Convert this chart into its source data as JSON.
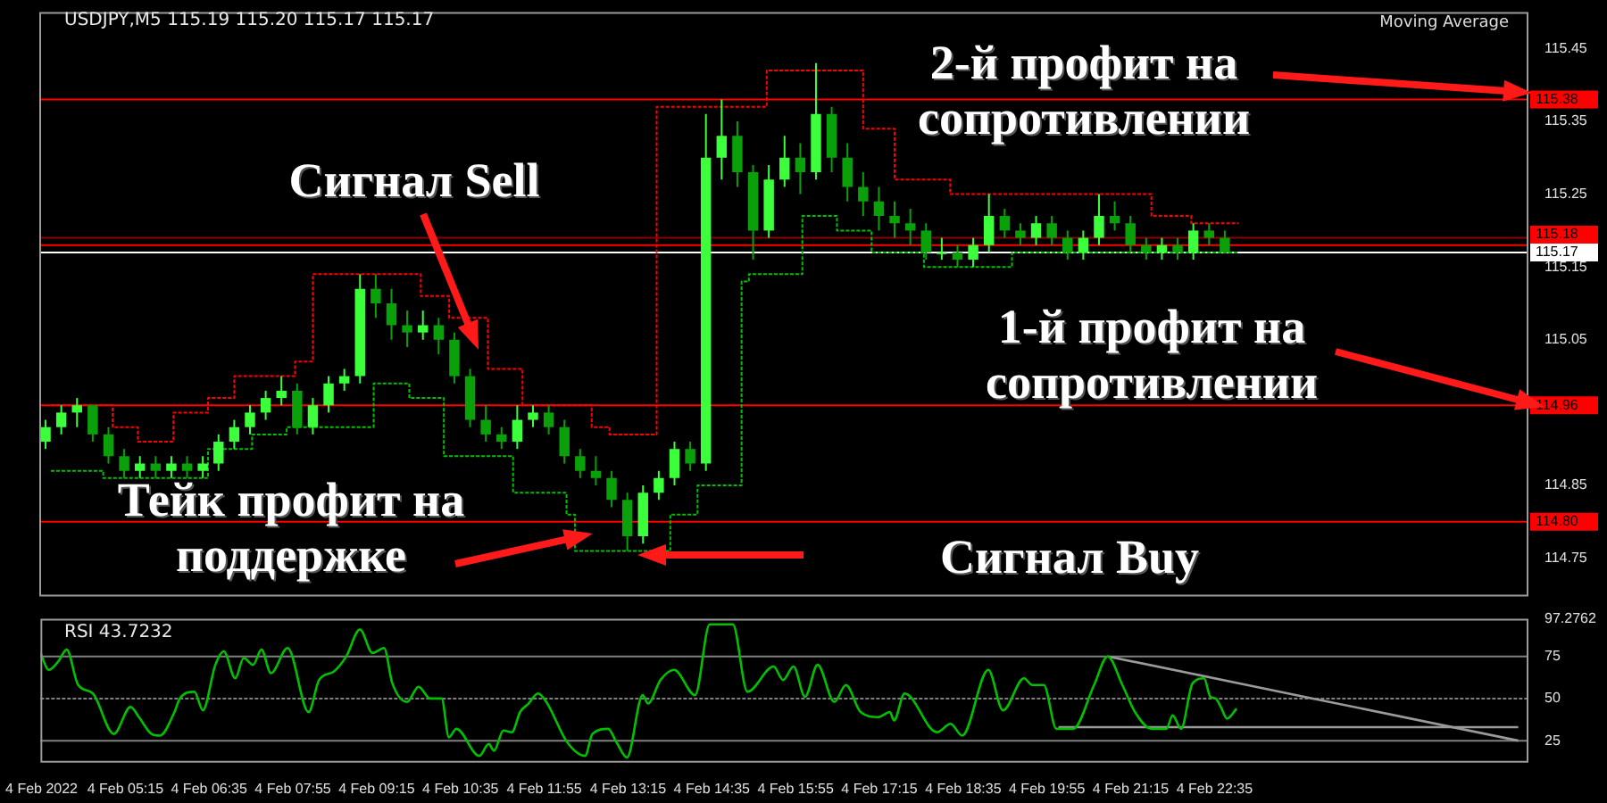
{
  "chart_data": [
    {
      "type": "candlestick",
      "title": "USDJPY,M5 115.19 115.20 115.17 115.17",
      "annotations": [
        "Moving Average",
        "Сигнал Sell",
        "Тейк профит на поддержке",
        "2-й профит на сопротивлении",
        "1-й профит на сопротивлении",
        "Сигнал Buy"
      ],
      "x": [
        "2022-02-04T04:00",
        "2022-02-04T04:15",
        "2022-02-04T04:30",
        "2022-02-04T04:45",
        "2022-02-04T05:00",
        "2022-02-04T05:15",
        "2022-02-04T05:30",
        "2022-02-04T05:45",
        "2022-02-04T06:00",
        "2022-02-04T06:15",
        "2022-02-04T06:30",
        "2022-02-04T06:45",
        "2022-02-04T07:00",
        "2022-02-04T07:15",
        "2022-02-04T07:30",
        "2022-02-04T07:45",
        "2022-02-04T08:00",
        "2022-02-04T08:15",
        "2022-02-04T08:30",
        "2022-02-04T08:45",
        "2022-02-04T09:00",
        "2022-02-04T09:15",
        "2022-02-04T09:30",
        "2022-02-04T09:45",
        "2022-02-04T10:00",
        "2022-02-04T10:15",
        "2022-02-04T10:30",
        "2022-02-04T10:45",
        "2022-02-04T11:00",
        "2022-02-04T11:15",
        "2022-02-04T11:30",
        "2022-02-04T11:45",
        "2022-02-04T12:00",
        "2022-02-04T12:15",
        "2022-02-04T12:30",
        "2022-02-04T12:45",
        "2022-02-04T13:00",
        "2022-02-04T13:15",
        "2022-02-04T13:30",
        "2022-02-04T13:45",
        "2022-02-04T14:00",
        "2022-02-04T14:15",
        "2022-02-04T14:30",
        "2022-02-04T14:45",
        "2022-02-04T15:00",
        "2022-02-04T15:15",
        "2022-02-04T15:30",
        "2022-02-04T15:45",
        "2022-02-04T16:00",
        "2022-02-04T16:15",
        "2022-02-04T16:30",
        "2022-02-04T16:45",
        "2022-02-04T17:00",
        "2022-02-04T17:15",
        "2022-02-04T17:30",
        "2022-02-04T17:45",
        "2022-02-04T18:00",
        "2022-02-04T18:15",
        "2022-02-04T18:30",
        "2022-02-04T18:45",
        "2022-02-04T19:00",
        "2022-02-04T19:15",
        "2022-02-04T19:30",
        "2022-02-04T19:45",
        "2022-02-04T20:00",
        "2022-02-04T20:15",
        "2022-02-04T20:30",
        "2022-02-04T20:45",
        "2022-02-04T21:00",
        "2022-02-04T21:15",
        "2022-02-04T21:30",
        "2022-02-04T21:45",
        "2022-02-04T22:00",
        "2022-02-04T22:15",
        "2022-02-04T22:30",
        "2022-02-04T22:45"
      ],
      "ohlc": [
        [
          114.91,
          114.94,
          114.9,
          114.93
        ],
        [
          114.93,
          114.96,
          114.92,
          114.95
        ],
        [
          114.95,
          114.97,
          114.93,
          114.96
        ],
        [
          114.96,
          114.96,
          114.91,
          114.92
        ],
        [
          114.92,
          114.93,
          114.88,
          114.89
        ],
        [
          114.89,
          114.9,
          114.86,
          114.87
        ],
        [
          114.87,
          114.89,
          114.86,
          114.88
        ],
        [
          114.88,
          114.89,
          114.86,
          114.87
        ],
        [
          114.87,
          114.89,
          114.86,
          114.88
        ],
        [
          114.88,
          114.89,
          114.86,
          114.87
        ],
        [
          114.87,
          114.89,
          114.86,
          114.88
        ],
        [
          114.88,
          114.92,
          114.87,
          114.91
        ],
        [
          114.91,
          114.94,
          114.9,
          114.93
        ],
        [
          114.93,
          114.96,
          114.92,
          114.95
        ],
        [
          114.95,
          114.98,
          114.94,
          114.97
        ],
        [
          114.97,
          115,
          114.96,
          114.98
        ],
        [
          114.98,
          114.99,
          114.92,
          114.93
        ],
        [
          114.93,
          114.97,
          114.92,
          114.96
        ],
        [
          114.96,
          115,
          114.95,
          114.99
        ],
        [
          114.99,
          115.01,
          114.98,
          115
        ],
        [
          115,
          115.14,
          114.99,
          115.12
        ],
        [
          115.12,
          115.14,
          115.08,
          115.1
        ],
        [
          115.1,
          115.12,
          115.05,
          115.07
        ],
        [
          115.07,
          115.09,
          115.04,
          115.06
        ],
        [
          115.06,
          115.09,
          115.05,
          115.07
        ],
        [
          115.07,
          115.08,
          115.03,
          115.05
        ],
        [
          115.05,
          115.06,
          114.99,
          115
        ],
        [
          115,
          115.01,
          114.93,
          114.94
        ],
        [
          114.94,
          114.96,
          114.91,
          114.92
        ],
        [
          114.92,
          114.93,
          114.9,
          114.91
        ],
        [
          114.91,
          114.96,
          114.9,
          114.94
        ],
        [
          114.94,
          114.96,
          114.93,
          114.95
        ],
        [
          114.95,
          114.96,
          114.92,
          114.93
        ],
        [
          114.93,
          114.94,
          114.88,
          114.89
        ],
        [
          114.89,
          114.9,
          114.86,
          114.87
        ],
        [
          114.87,
          114.89,
          114.85,
          114.86
        ],
        [
          114.86,
          114.87,
          114.82,
          114.83
        ],
        [
          114.83,
          114.84,
          114.76,
          114.78
        ],
        [
          114.78,
          114.85,
          114.77,
          114.84
        ],
        [
          114.84,
          114.87,
          114.83,
          114.86
        ],
        [
          114.86,
          114.91,
          114.85,
          114.9
        ],
        [
          114.9,
          114.91,
          114.87,
          114.88
        ],
        [
          114.88,
          115.36,
          114.87,
          115.3
        ],
        [
          115.3,
          115.38,
          115.27,
          115.33
        ],
        [
          115.33,
          115.35,
          115.26,
          115.28
        ],
        [
          115.28,
          115.29,
          115.16,
          115.2
        ],
        [
          115.2,
          115.29,
          115.19,
          115.27
        ],
        [
          115.27,
          115.33,
          115.26,
          115.3
        ],
        [
          115.3,
          115.32,
          115.25,
          115.28
        ],
        [
          115.28,
          115.43,
          115.27,
          115.36
        ],
        [
          115.36,
          115.37,
          115.28,
          115.3
        ],
        [
          115.3,
          115.32,
          115.24,
          115.26
        ],
        [
          115.26,
          115.28,
          115.22,
          115.24
        ],
        [
          115.24,
          115.26,
          115.2,
          115.22
        ],
        [
          115.22,
          115.24,
          115.19,
          115.21
        ],
        [
          115.21,
          115.23,
          115.18,
          115.2
        ],
        [
          115.2,
          115.21,
          115.16,
          115.17
        ],
        [
          115.17,
          115.19,
          115.16,
          115.17
        ],
        [
          115.17,
          115.18,
          115.15,
          115.16
        ],
        [
          115.16,
          115.19,
          115.15,
          115.18
        ],
        [
          115.18,
          115.25,
          115.17,
          115.22
        ],
        [
          115.22,
          115.23,
          115.19,
          115.2
        ],
        [
          115.2,
          115.21,
          115.18,
          115.19
        ],
        [
          115.19,
          115.22,
          115.18,
          115.21
        ],
        [
          115.21,
          115.22,
          115.18,
          115.19
        ],
        [
          115.19,
          115.2,
          115.16,
          115.17
        ],
        [
          115.17,
          115.2,
          115.16,
          115.19
        ],
        [
          115.19,
          115.25,
          115.18,
          115.22
        ],
        [
          115.22,
          115.24,
          115.2,
          115.21
        ],
        [
          115.21,
          115.22,
          115.17,
          115.18
        ],
        [
          115.18,
          115.19,
          115.16,
          115.17
        ],
        [
          115.17,
          115.19,
          115.16,
          115.18
        ],
        [
          115.18,
          115.19,
          115.16,
          115.17
        ],
        [
          115.17,
          115.21,
          115.16,
          115.2
        ],
        [
          115.2,
          115.21,
          115.18,
          115.19
        ],
        [
          115.19,
          115.2,
          115.17,
          115.17
        ]
      ],
      "series": [
        {
          "type": "step",
          "color": "#ff0000",
          "line_style": "dotted",
          "x": [
            "2022-02-04T04:05",
            "2022-02-04T05:04",
            "2022-02-04T05:28",
            "2022-02-04T06:02",
            "2022-02-04T06:35",
            "2022-02-04T07:00",
            "2022-02-04T07:58",
            "2022-02-04T08:15",
            "2022-02-04T09:58",
            "2022-02-04T10:25",
            "2022-02-04T11:02",
            "2022-02-04T11:35",
            "2022-02-04T12:41",
            "2022-02-04T12:58",
            "2022-02-04T13:43",
            "2022-02-04T15:28",
            "2022-02-04T17:00",
            "2022-02-04T17:30",
            "2022-02-04T18:23",
            "2022-02-04T21:35",
            "2022-02-04T22:13",
            "2022-02-04T22:58"
          ],
          "values": [
            114.96,
            114.93,
            114.91,
            114.95,
            114.97,
            115,
            115.02,
            115.14,
            115.11,
            115.08,
            115.01,
            114.96,
            114.93,
            114.92,
            115.37,
            115.42,
            115.34,
            115.27,
            115.25,
            115.22,
            115.21,
            115.21
          ]
        },
        {
          "type": "step",
          "color": "#00c000",
          "line_style": "dotted",
          "x": [
            "2022-02-04T04:05",
            "2022-02-04T04:55",
            "2022-02-04T06:35",
            "2022-02-04T07:17",
            "2022-02-04T07:50",
            "2022-02-04T09:13",
            "2022-02-04T09:47",
            "2022-02-04T10:20",
            "2022-02-04T11:26",
            "2022-02-04T12:17",
            "2022-02-04T12:25",
            "2022-02-04T13:56",
            "2022-02-04T14:22",
            "2022-02-04T15:04",
            "2022-02-04T15:11",
            "2022-02-04T16:02",
            "2022-02-04T16:35",
            "2022-02-04T17:08",
            "2022-02-04T17:58",
            "2022-02-04T19:22",
            "2022-02-04T22:58"
          ],
          "values": [
            114.87,
            114.86,
            114.9,
            114.92,
            114.93,
            114.99,
            114.97,
            114.89,
            114.84,
            114.81,
            114.76,
            114.81,
            114.85,
            115.13,
            115.14,
            115.22,
            115.2,
            115.17,
            115.15,
            115.17,
            115.17
          ]
        }
      ],
      "xlim": [
        "2022-02-04T03:54",
        "2022-02-05T03:33"
      ],
      "ylim": [
        114.7,
        115.5
      ],
      "yticks": [
        114.75,
        114.85,
        115.05,
        115.15,
        115.25,
        115.35,
        115.45
      ],
      "ref_lines": [
        {
          "axis": "y",
          "value": 115.38,
          "label": "115.38",
          "color": "#ff0000"
        },
        {
          "axis": "y",
          "value": 115.19,
          "label": null,
          "color": "#8b0000"
        },
        {
          "axis": "y",
          "value": 115.18,
          "label": "115.18",
          "color": "#ff0000"
        },
        {
          "axis": "y",
          "value": 115.17,
          "label": "115.17",
          "color": "#ffffff"
        },
        {
          "axis": "y",
          "value": 114.96,
          "label": "114.96",
          "color": "#ff0000"
        },
        {
          "axis": "y",
          "value": 114.8,
          "label": "114.80",
          "color": "#ff0000"
        }
      ],
      "tick_labels": "y",
      "grid": false,
      "legend": false,
      "marker": "none"
    },
    {
      "type": "line",
      "title": "RSI 43.7232",
      "series": [
        {
          "color": "#00c000",
          "x": [
            "2022-02-04T03:54",
            "2022-02-04T04:02",
            "2022-02-04T04:11",
            "2022-02-04T04:19",
            "2022-02-04T04:30",
            "2022-02-04T04:44",
            "2022-02-04T05:04",
            "2022-02-04T05:20",
            "2022-02-04T05:28",
            "2022-02-04T05:40",
            "2022-02-04T05:48",
            "2022-02-04T06:02",
            "2022-02-04T06:07",
            "2022-02-04T06:21",
            "2022-02-04T06:29",
            "2022-02-04T06:41",
            "2022-02-04T06:49",
            "2022-02-04T07:00",
            "2022-02-04T07:08",
            "2022-02-04T07:17",
            "2022-02-04T07:25",
            "2022-02-04T07:34",
            "2022-02-04T07:50",
            "2022-02-04T08:10",
            "2022-02-04T08:20",
            "2022-02-04T08:34",
            "2022-02-04T08:46",
            "2022-02-04T08:59",
            "2022-02-04T09:11",
            "2022-02-04T09:22",
            "2022-02-04T09:30",
            "2022-02-04T09:44",
            "2022-02-04T09:55",
            "2022-02-04T10:06",
            "2022-02-04T10:17",
            "2022-02-04T10:24",
            "2022-02-04T10:31",
            "2022-02-04T10:53",
            "2022-02-04T11:02",
            "2022-02-04T11:07",
            "2022-02-04T11:16",
            "2022-02-04T11:24",
            "2022-02-04T11:32",
            "2022-02-04T11:40",
            "2022-02-04T11:49",
            "2022-02-04T11:57",
            "2022-02-04T12:17",
            "2022-02-04T12:34",
            "2022-02-04T12:41",
            "2022-02-04T12:56",
            "2022-02-04T13:04",
            "2022-02-04T13:14",
            "2022-02-04T13:29",
            "2022-02-04T13:34",
            "2022-02-04T13:46",
            "2022-02-04T13:59",
            "2022-02-04T14:19",
            "2022-02-04T14:33",
            "2022-02-04T14:55",
            "2022-02-04T15:09",
            "2022-02-04T15:34",
            "2022-02-04T15:43",
            "2022-02-04T15:53",
            "2022-02-04T16:04",
            "2022-02-04T16:16",
            "2022-02-04T16:32",
            "2022-02-04T16:43",
            "2022-02-04T16:57",
            "2022-02-04T17:14",
            "2022-02-04T17:25",
            "2022-02-04T17:29",
            "2022-02-04T17:39",
            "2022-02-04T18:10",
            "2022-02-04T18:23",
            "2022-02-04T18:34",
            "2022-02-04T18:59",
            "2022-02-04T19:13",
            "2022-02-04T19:33",
            "2022-02-04T19:41",
            "2022-02-04T19:52",
            "2022-02-04T20:04",
            "2022-02-04T20:20",
            "2022-02-04T20:40",
            "2022-02-04T20:53",
            "2022-02-04T21:07",
            "2022-02-04T21:19",
            "2022-02-04T21:35",
            "2022-02-04T21:49",
            "2022-02-04T21:55",
            "2022-02-04T22:03",
            "2022-02-04T22:14",
            "2022-02-04T22:25",
            "2022-02-04T22:31",
            "2022-02-04T22:36",
            "2022-02-04T22:41",
            "2022-02-04T22:47",
            "2022-02-04T22:56"
          ],
          "values": [
            77,
            67,
            72,
            79,
            58,
            53,
            29,
            45,
            39,
            29,
            28,
            42,
            50,
            54,
            43,
            70,
            78,
            62,
            74,
            70,
            79,
            65,
            80,
            42,
            61,
            66,
            75,
            91,
            77,
            80,
            59,
            48,
            57,
            50,
            50,
            27,
            32,
            16,
            23,
            19,
            31,
            30,
            42,
            47,
            53,
            48,
            24,
            16,
            29,
            32,
            24,
            15,
            52,
            47,
            61,
            67,
            52,
            94,
            94,
            54,
            69,
            61,
            69,
            51,
            70,
            48,
            58,
            42,
            39,
            42,
            37,
            53,
            30,
            35,
            28,
            67,
            43,
            62,
            58,
            58,
            32,
            32,
            58,
            75,
            58,
            42,
            32,
            32,
            40,
            32,
            59,
            62,
            51,
            50,
            45,
            38,
            44
          ]
        },
        {
          "type": "line",
          "color": "#9a9a9a",
          "x": [
            "2022-02-04T20:53",
            "2022-02-05T03:25"
          ],
          "values": [
            75,
            25
          ]
        },
        {
          "type": "line",
          "color": "#9a9a9a",
          "x": [
            "2022-02-04T20:06",
            "2022-02-05T03:25"
          ],
          "values": [
            33,
            33
          ]
        }
      ],
      "xlim": [
        "2022-02-04T03:54",
        "2022-02-05T03:33"
      ],
      "xticks": [
        {
          "value": "2022-02-04T03:55",
          "label": "4 Feb 2022"
        },
        {
          "value": "2022-02-04T05:15",
          "label": "4 Feb 05:15"
        },
        {
          "value": "2022-02-04T06:35",
          "label": "4 Feb 06:35"
        },
        {
          "value": "2022-02-04T07:55",
          "label": "4 Feb 07:55"
        },
        {
          "value": "2022-02-04T09:15",
          "label": "4 Feb 09:15"
        },
        {
          "value": "2022-02-04T10:35",
          "label": "4 Feb 10:35"
        },
        {
          "value": "2022-02-04T11:55",
          "label": "4 Feb 11:55"
        },
        {
          "value": "2022-02-04T13:15",
          "label": "4 Feb 13:15"
        },
        {
          "value": "2022-02-04T14:35",
          "label": "4 Feb 14:35"
        },
        {
          "value": "2022-02-04T15:55",
          "label": "4 Feb 15:55"
        },
        {
          "value": "2022-02-04T17:15",
          "label": "4 Feb 17:15"
        },
        {
          "value": "2022-02-04T18:35",
          "label": "4 Feb 18:35"
        },
        {
          "value": "2022-02-04T19:55",
          "label": "4 Feb 19:55"
        },
        {
          "value": "2022-02-04T21:15",
          "label": "4 Feb 21:15"
        },
        {
          "value": "2022-02-04T22:35",
          "label": "4 Feb 22:35"
        }
      ],
      "ylim": [
        13,
        97.2762
      ],
      "yticks": [
        25,
        50,
        75,
        97.2762
      ],
      "ref_lines": [
        {
          "axis": "y",
          "value": 75,
          "label": null,
          "color": "#808080",
          "line_style": "solid"
        },
        {
          "axis": "y",
          "value": 50,
          "label": null,
          "color": "#808080",
          "line_style": "dotted"
        },
        {
          "axis": "y",
          "value": 25,
          "label": null,
          "color": "#808080",
          "line_style": "solid"
        }
      ],
      "grid": false,
      "legend": false,
      "marker": "none"
    }
  ]
}
